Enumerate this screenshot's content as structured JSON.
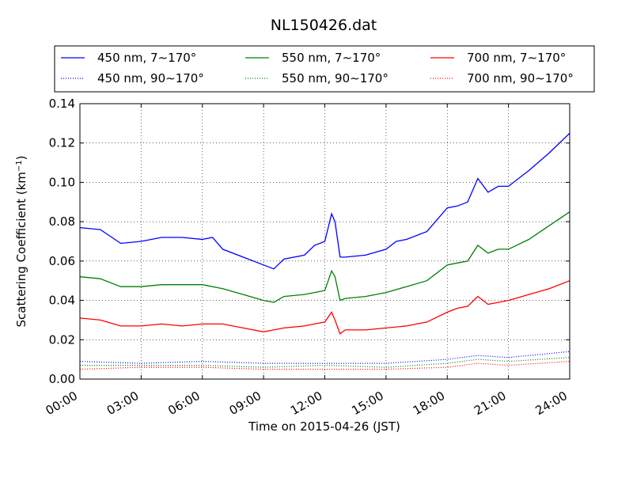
{
  "chart_data": {
    "type": "line",
    "title": "NL150426.dat",
    "xlabel": "Time on 2015-04-26 (JST)",
    "ylabel": "Scattering Coefficient (km",
    "ylabel_sup": "−1",
    "ylabel_close": ")",
    "xlim": [
      "00:00",
      "24:00"
    ],
    "ylim": [
      0.0,
      0.14
    ],
    "x_ticks": [
      "00:00",
      "03:00",
      "06:00",
      "09:00",
      "12:00",
      "15:00",
      "18:00",
      "21:00",
      "24:00"
    ],
    "y_ticks": [
      "0.00",
      "0.02",
      "0.04",
      "0.06",
      "0.08",
      "0.10",
      "0.12",
      "0.14"
    ],
    "grid": true,
    "legend_position": "top",
    "series": [
      {
        "name": "450 nm, 7∼170°",
        "color": "#0000ff",
        "style": "solid",
        "x": [
          "00:00",
          "01:00",
          "02:00",
          "03:00",
          "04:00",
          "05:00",
          "06:00",
          "06:30",
          "07:00",
          "08:00",
          "09:00",
          "09:30",
          "10:00",
          "11:00",
          "11:30",
          "12:00",
          "12:20",
          "12:30",
          "12:45",
          "13:00",
          "14:00",
          "15:00",
          "15:30",
          "16:00",
          "17:00",
          "18:00",
          "18:30",
          "19:00",
          "19:30",
          "20:00",
          "20:30",
          "21:00",
          "22:00",
          "23:00",
          "24:00"
        ],
        "values": [
          0.077,
          0.076,
          0.069,
          0.07,
          0.072,
          0.072,
          0.071,
          0.072,
          0.066,
          0.062,
          0.058,
          0.056,
          0.061,
          0.063,
          0.068,
          0.07,
          0.084,
          0.08,
          0.062,
          0.062,
          0.063,
          0.066,
          0.07,
          0.071,
          0.075,
          0.087,
          0.088,
          0.09,
          0.102,
          0.095,
          0.098,
          0.098,
          0.106,
          0.115,
          0.125
        ]
      },
      {
        "name": "550 nm, 7∼170°",
        "color": "#008000",
        "style": "solid",
        "x": [
          "00:00",
          "01:00",
          "02:00",
          "03:00",
          "04:00",
          "05:00",
          "06:00",
          "07:00",
          "08:00",
          "09:00",
          "09:30",
          "10:00",
          "11:00",
          "12:00",
          "12:20",
          "12:30",
          "12:45",
          "13:00",
          "14:00",
          "15:00",
          "16:00",
          "17:00",
          "18:00",
          "18:30",
          "19:00",
          "19:30",
          "20:00",
          "20:30",
          "21:00",
          "22:00",
          "23:00",
          "24:00"
        ],
        "values": [
          0.052,
          0.051,
          0.047,
          0.047,
          0.048,
          0.048,
          0.048,
          0.046,
          0.043,
          0.04,
          0.039,
          0.042,
          0.043,
          0.045,
          0.055,
          0.052,
          0.04,
          0.041,
          0.042,
          0.044,
          0.047,
          0.05,
          0.058,
          0.059,
          0.06,
          0.068,
          0.064,
          0.066,
          0.066,
          0.071,
          0.078,
          0.085
        ]
      },
      {
        "name": "700 nm, 7∼170°",
        "color": "#ff0000",
        "style": "solid",
        "x": [
          "00:00",
          "01:00",
          "02:00",
          "03:00",
          "04:00",
          "05:00",
          "06:00",
          "07:00",
          "08:00",
          "09:00",
          "09:30",
          "10:00",
          "11:00",
          "12:00",
          "12:20",
          "12:30",
          "12:45",
          "13:00",
          "14:00",
          "15:00",
          "16:00",
          "17:00",
          "18:00",
          "18:30",
          "19:00",
          "19:30",
          "20:00",
          "20:30",
          "21:00",
          "22:00",
          "23:00",
          "24:00"
        ],
        "values": [
          0.031,
          0.03,
          0.027,
          0.027,
          0.028,
          0.027,
          0.028,
          0.028,
          0.026,
          0.024,
          0.025,
          0.026,
          0.027,
          0.029,
          0.034,
          0.03,
          0.023,
          0.025,
          0.025,
          0.026,
          0.027,
          0.029,
          0.034,
          0.036,
          0.037,
          0.042,
          0.038,
          0.039,
          0.04,
          0.043,
          0.046,
          0.05
        ]
      },
      {
        "name": "450 nm, 90∼170°",
        "color": "#0000ff",
        "style": "dotted",
        "x": [
          "00:00",
          "03:00",
          "06:00",
          "09:00",
          "12:00",
          "15:00",
          "18:00",
          "19:30",
          "21:00",
          "24:00"
        ],
        "values": [
          0.009,
          0.008,
          0.009,
          0.008,
          0.008,
          0.008,
          0.01,
          0.012,
          0.011,
          0.014
        ]
      },
      {
        "name": "550 nm, 90∼170°",
        "color": "#008000",
        "style": "dotted",
        "x": [
          "00:00",
          "03:00",
          "06:00",
          "09:00",
          "12:00",
          "15:00",
          "18:00",
          "19:30",
          "21:00",
          "24:00"
        ],
        "values": [
          0.007,
          0.007,
          0.007,
          0.006,
          0.007,
          0.006,
          0.008,
          0.01,
          0.009,
          0.011
        ]
      },
      {
        "name": "700 nm, 90∼170°",
        "color": "#ff0000",
        "style": "dotted",
        "x": [
          "00:00",
          "03:00",
          "06:00",
          "09:00",
          "12:00",
          "15:00",
          "18:00",
          "19:30",
          "21:00",
          "24:00"
        ],
        "values": [
          0.005,
          0.006,
          0.006,
          0.005,
          0.005,
          0.005,
          0.006,
          0.008,
          0.007,
          0.009
        ]
      }
    ],
    "legend_order": [
      0,
      1,
      2,
      3,
      4,
      5
    ]
  }
}
